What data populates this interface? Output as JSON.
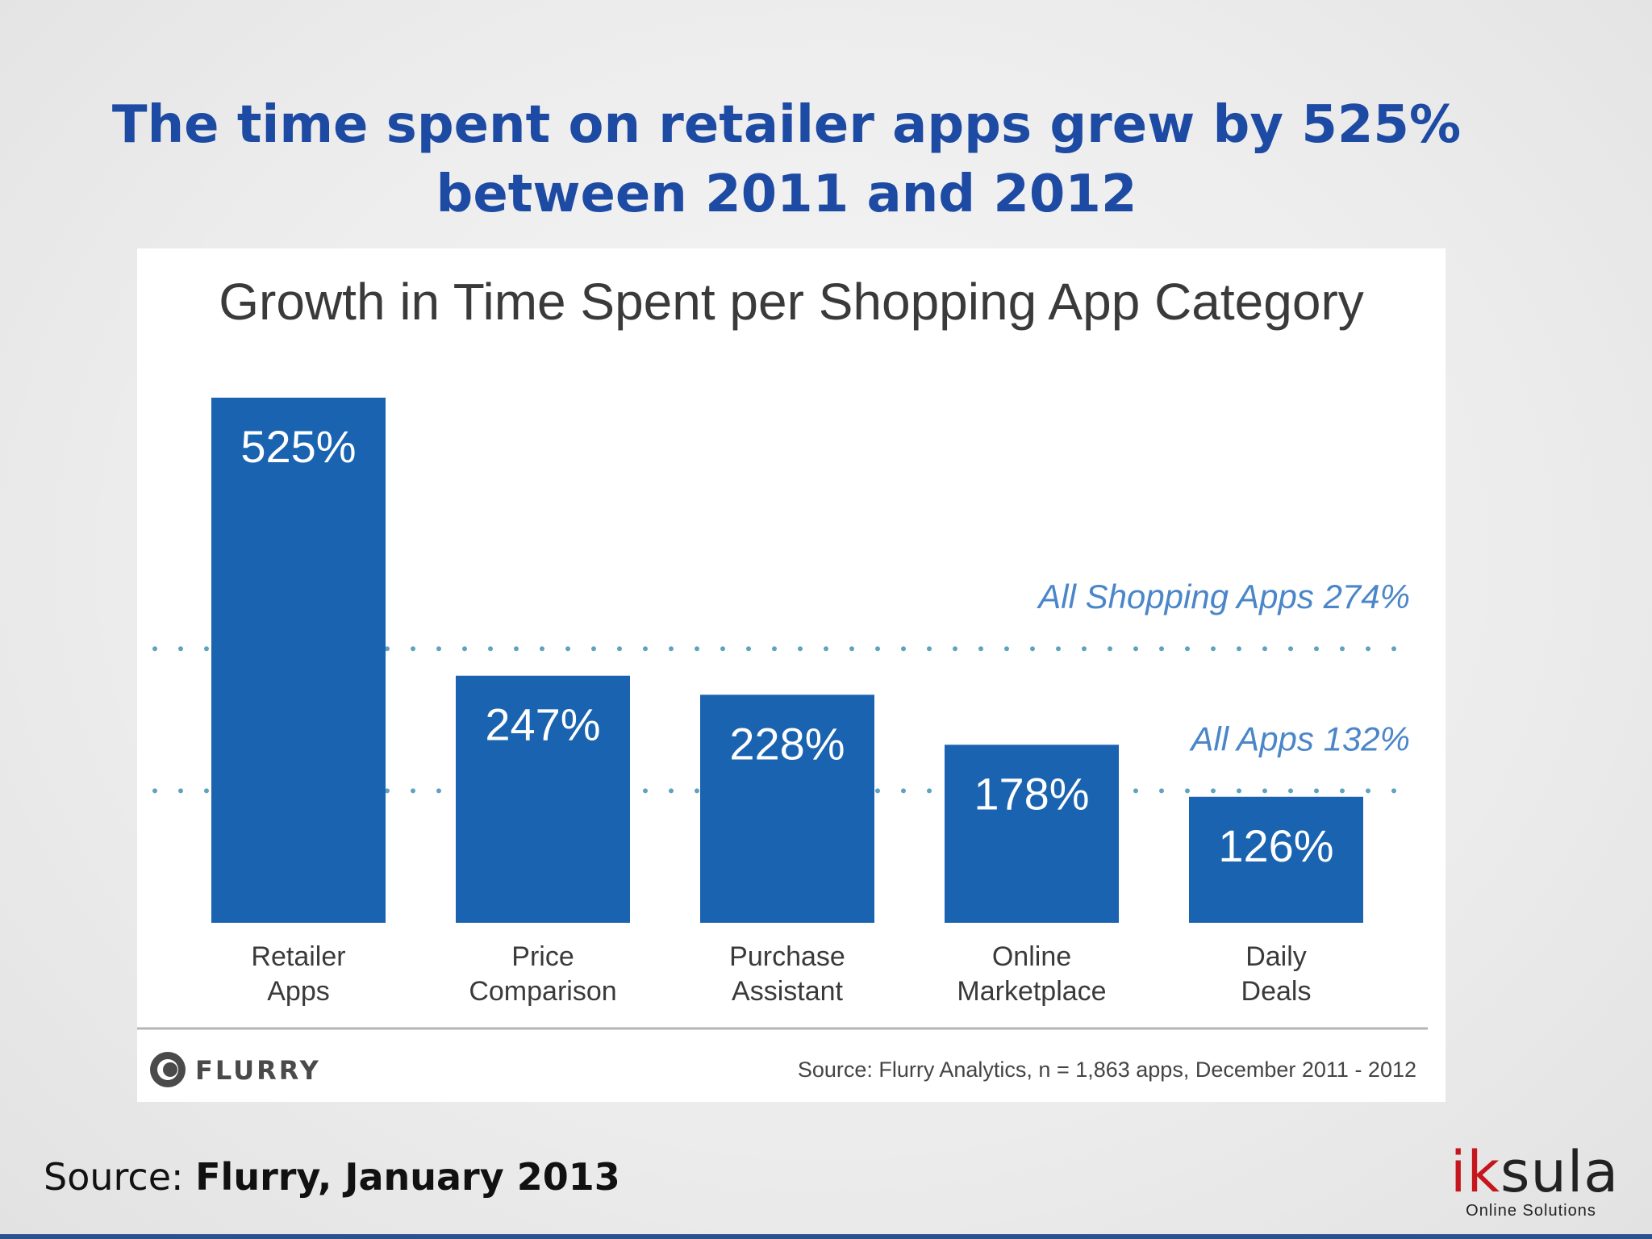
{
  "slide": {
    "title_line1": "The time spent on retailer apps grew by 525%",
    "title_line2": "between 2011 and 2012",
    "source_prefix": "Source: ",
    "source_bold": "Flurry, January 2013"
  },
  "brand": {
    "logo_accent": "ik",
    "logo_rest": "sula",
    "tagline": "Online Solutions"
  },
  "chart_data": {
    "type": "bar",
    "title": "Growth in Time Spent per Shopping App Category",
    "categories": [
      [
        "Retailer",
        "Apps"
      ],
      [
        "Price",
        "Comparison"
      ],
      [
        "Purchase",
        "Assistant"
      ],
      [
        "Online",
        "Marketplace"
      ],
      [
        "Daily",
        "Deals"
      ]
    ],
    "values": [
      525,
      247,
      228,
      178,
      126
    ],
    "data_labels": [
      "525%",
      "247%",
      "228%",
      "178%",
      "126%"
    ],
    "reference_lines": [
      {
        "label": "All Shopping Apps 274%",
        "value": 274
      },
      {
        "label": "All Apps 132%",
        "value": 132
      }
    ],
    "ylim": [
      0,
      525
    ],
    "grid": false,
    "legend": "none",
    "bar_color": "#1a63b0",
    "reference_color": "#5fa3bf",
    "footer_logo": "FLURRY",
    "footer_source": "Source: Flurry Analytics, n = 1,863 apps, December 2011 - 2012"
  }
}
